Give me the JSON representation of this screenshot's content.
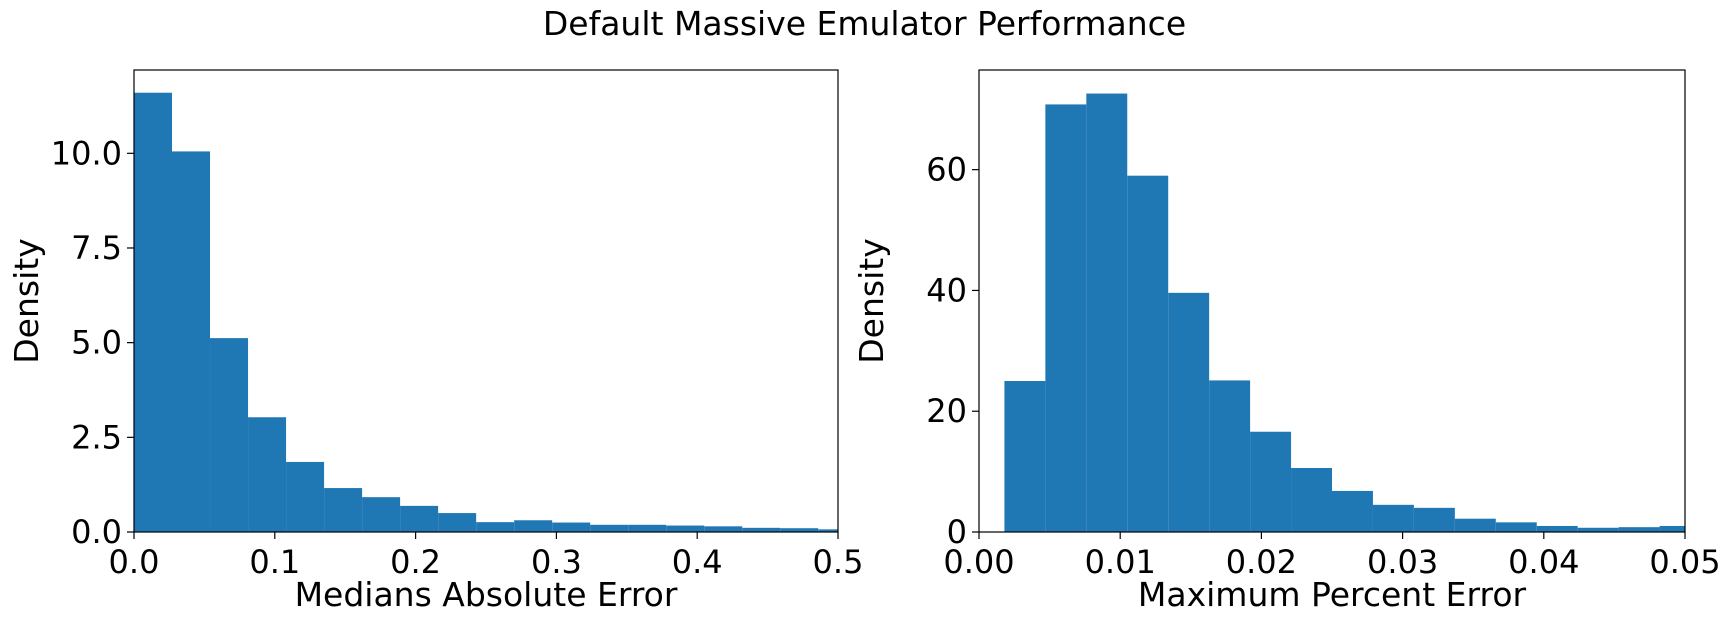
{
  "figure": {
    "title": "Default Massive Emulator Performance"
  },
  "chart_data": [
    {
      "type": "bar",
      "xlabel": "Medians Absolute Error",
      "ylabel": "Density",
      "xlim": [
        0.0,
        0.5
      ],
      "ylim": [
        0.0,
        12.2
      ],
      "xticks": [
        0.0,
        0.1,
        0.2,
        0.3,
        0.4,
        0.5
      ],
      "xtick_labels": [
        "0.0",
        "0.1",
        "0.2",
        "0.3",
        "0.4",
        "0.5"
      ],
      "yticks": [
        0.0,
        2.5,
        5.0,
        7.5,
        10.0
      ],
      "ytick_labels": [
        "0.0",
        "2.5",
        "5.0",
        "7.5",
        "10.0"
      ],
      "bins": [
        {
          "x0": 0.0,
          "x1": 0.027,
          "value": 11.6
        },
        {
          "x0": 0.027,
          "x1": 0.054,
          "value": 10.05
        },
        {
          "x0": 0.054,
          "x1": 0.081,
          "value": 5.12
        },
        {
          "x0": 0.081,
          "x1": 0.108,
          "value": 3.03
        },
        {
          "x0": 0.108,
          "x1": 0.135,
          "value": 1.85
        },
        {
          "x0": 0.135,
          "x1": 0.162,
          "value": 1.16
        },
        {
          "x0": 0.162,
          "x1": 0.189,
          "value": 0.92
        },
        {
          "x0": 0.189,
          "x1": 0.216,
          "value": 0.69
        },
        {
          "x0": 0.216,
          "x1": 0.243,
          "value": 0.5
        },
        {
          "x0": 0.243,
          "x1": 0.27,
          "value": 0.26
        },
        {
          "x0": 0.27,
          "x1": 0.297,
          "value": 0.31
        },
        {
          "x0": 0.297,
          "x1": 0.324,
          "value": 0.25
        },
        {
          "x0": 0.324,
          "x1": 0.351,
          "value": 0.19
        },
        {
          "x0": 0.351,
          "x1": 0.378,
          "value": 0.19
        },
        {
          "x0": 0.378,
          "x1": 0.405,
          "value": 0.17
        },
        {
          "x0": 0.405,
          "x1": 0.432,
          "value": 0.15
        },
        {
          "x0": 0.432,
          "x1": 0.459,
          "value": 0.11
        },
        {
          "x0": 0.459,
          "x1": 0.486,
          "value": 0.1
        },
        {
          "x0": 0.486,
          "x1": 0.513,
          "value": 0.07
        }
      ],
      "bar_color": "#1f77b4",
      "grid": false,
      "legend": "none"
    },
    {
      "type": "bar",
      "xlabel": "Maximum Percent Error",
      "ylabel": "Density",
      "xlim": [
        0.0,
        0.05
      ],
      "ylim": [
        0.0,
        76.5
      ],
      "xticks": [
        0.0,
        0.01,
        0.02,
        0.03,
        0.04,
        0.05
      ],
      "xtick_labels": [
        "0.00",
        "0.01",
        "0.02",
        "0.03",
        "0.04",
        "0.05"
      ],
      "yticks": [
        0,
        20,
        40,
        60
      ],
      "ytick_labels": [
        "0",
        "20",
        "40",
        "60"
      ],
      "bins": [
        {
          "x0": 0.0018,
          "x1": 0.0047,
          "value": 25.0
        },
        {
          "x0": 0.0047,
          "x1": 0.0076,
          "value": 70.8
        },
        {
          "x0": 0.0076,
          "x1": 0.0105,
          "value": 72.6
        },
        {
          "x0": 0.0105,
          "x1": 0.0134,
          "value": 59.0
        },
        {
          "x0": 0.0134,
          "x1": 0.0163,
          "value": 39.6
        },
        {
          "x0": 0.0163,
          "x1": 0.0192,
          "value": 25.1
        },
        {
          "x0": 0.0192,
          "x1": 0.0221,
          "value": 16.6
        },
        {
          "x0": 0.0221,
          "x1": 0.025,
          "value": 10.6
        },
        {
          "x0": 0.025,
          "x1": 0.0279,
          "value": 6.8
        },
        {
          "x0": 0.0279,
          "x1": 0.0308,
          "value": 4.5
        },
        {
          "x0": 0.0308,
          "x1": 0.0337,
          "value": 4.0
        },
        {
          "x0": 0.0337,
          "x1": 0.0366,
          "value": 2.2
        },
        {
          "x0": 0.0366,
          "x1": 0.0395,
          "value": 1.6
        },
        {
          "x0": 0.0395,
          "x1": 0.0424,
          "value": 1.0
        },
        {
          "x0": 0.0424,
          "x1": 0.0453,
          "value": 0.7
        },
        {
          "x0": 0.0453,
          "x1": 0.0482,
          "value": 0.8
        },
        {
          "x0": 0.0482,
          "x1": 0.0511,
          "value": 1.0
        }
      ],
      "bar_color": "#1f77b4",
      "grid": false,
      "legend": "none"
    }
  ]
}
